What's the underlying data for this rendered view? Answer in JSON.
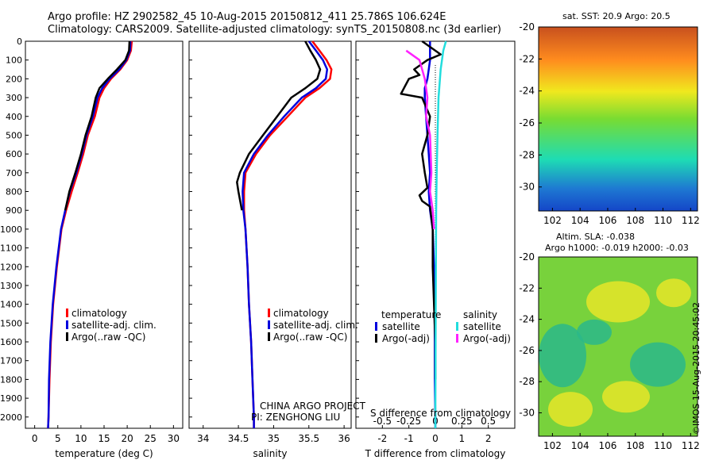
{
  "header": {
    "line1": "Argo profile: HZ 2902582_45 10-Aug-2015 20150812_411 25.786S 106.624E",
    "line2": "Climatology: CARS2009. Satellite-adjusted climatology: synTS_20150808.nc (3d earlier)"
  },
  "colors": {
    "climatology": "#ff0000",
    "satellite": "#0000dd",
    "argo": "#000000",
    "salinity_satellite": "#22dddd",
    "salinity_argo": "#ff22ff"
  },
  "legend": {
    "climatology": "climatology",
    "satellite_adj": "satellite-adj. clim.",
    "argo_raw": "Argo(..raw -QC)",
    "temperature_head": "temperature",
    "salinity_head": "salinity",
    "satellite": "satellite",
    "argo_adj": "Argo(-adj)"
  },
  "annotations": {
    "project": "CHINA ARGO PROJECT",
    "pi": "PI: ZENGHONG LIU",
    "s_diff": "S difference from climatology",
    "stamp": "©IMOS 15-Aug-2015 20:45:02"
  },
  "maps": {
    "sst_title": "sat. SST: 20.9 Argo: 20.5",
    "sla_title1": "Altim. SLA: -0.038",
    "sla_title2": "Argo h1000: -0.019 h2000: -0.03",
    "lat_ticks": [
      "-20",
      "-22",
      "-24",
      "-26",
      "-28",
      "-30"
    ],
    "lon_ticks": [
      "102",
      "104",
      "106",
      "108",
      "110",
      "112"
    ]
  },
  "chart_data": [
    {
      "type": "line",
      "xlabel": "temperature (deg C)",
      "ylabel": "",
      "xlim": [
        -2,
        32
      ],
      "ylim": [
        2060,
        0
      ],
      "x_ticks": [
        "0",
        "5",
        "10",
        "15",
        "20",
        "25",
        "30"
      ],
      "y_ticks": [
        "0",
        "100",
        "200",
        "300",
        "400",
        "500",
        "600",
        "700",
        "800",
        "900",
        "1000",
        "1100",
        "1200",
        "1300",
        "1400",
        "1500",
        "1600",
        "1700",
        "1800",
        "1900",
        "2000"
      ],
      "series": [
        {
          "name": "climatology",
          "color_key": "climatology",
          "points": [
            [
              21.0,
              0
            ],
            [
              20.8,
              50
            ],
            [
              20.0,
              100
            ],
            [
              18.5,
              150
            ],
            [
              16.5,
              200
            ],
            [
              15.0,
              250
            ],
            [
              14.0,
              300
            ],
            [
              13.0,
              400
            ],
            [
              11.5,
              500
            ],
            [
              10.5,
              600
            ],
            [
              9.3,
              700
            ],
            [
              8.0,
              800
            ],
            [
              6.8,
              900
            ],
            [
              5.8,
              1000
            ],
            [
              4.8,
              1200
            ],
            [
              4.0,
              1400
            ],
            [
              3.5,
              1600
            ],
            [
              3.2,
              1800
            ],
            [
              3.0,
              2000
            ],
            [
              2.9,
              2060
            ]
          ]
        },
        {
          "name": "satellite-adj. clim.",
          "color_key": "satellite",
          "points": [
            [
              20.7,
              0
            ],
            [
              20.6,
              50
            ],
            [
              19.8,
              100
            ],
            [
              18.3,
              150
            ],
            [
              16.2,
              200
            ],
            [
              14.6,
              250
            ],
            [
              13.6,
              300
            ],
            [
              12.6,
              400
            ],
            [
              11.2,
              500
            ],
            [
              10.2,
              600
            ],
            [
              9.0,
              700
            ],
            [
              7.6,
              800
            ],
            [
              6.6,
              900
            ],
            [
              5.7,
              1000
            ],
            [
              4.7,
              1200
            ],
            [
              3.9,
              1400
            ],
            [
              3.4,
              1600
            ],
            [
              3.1,
              1800
            ],
            [
              3.0,
              2000
            ],
            [
              2.9,
              2060
            ]
          ]
        },
        {
          "name": "Argo(..raw -QC)",
          "color_key": "argo",
          "points": [
            [
              20.5,
              0
            ],
            [
              20.4,
              50
            ],
            [
              19.6,
              100
            ],
            [
              17.8,
              150
            ],
            [
              15.8,
              200
            ],
            [
              14.0,
              250
            ],
            [
              13.2,
              300
            ],
            [
              12.3,
              400
            ],
            [
              11.0,
              500
            ],
            [
              10.0,
              600
            ],
            [
              8.8,
              700
            ],
            [
              7.5,
              800
            ],
            [
              6.6,
              900
            ]
          ]
        }
      ]
    },
    {
      "type": "line",
      "xlabel": "salinity",
      "ylabel": "",
      "xlim": [
        33.8,
        36.1
      ],
      "ylim": [
        2060,
        0
      ],
      "x_ticks": [
        "34",
        "34.5",
        "35",
        "35.5",
        "36"
      ],
      "series": [
        {
          "name": "climatology",
          "color_key": "climatology",
          "points": [
            [
              35.55,
              0
            ],
            [
              35.65,
              50
            ],
            [
              35.75,
              100
            ],
            [
              35.82,
              150
            ],
            [
              35.8,
              200
            ],
            [
              35.65,
              250
            ],
            [
              35.45,
              300
            ],
            [
              35.2,
              400
            ],
            [
              34.95,
              500
            ],
            [
              34.75,
              600
            ],
            [
              34.6,
              700
            ],
            [
              34.58,
              800
            ],
            [
              34.58,
              900
            ],
            [
              34.6,
              1000
            ],
            [
              34.63,
              1200
            ],
            [
              34.65,
              1400
            ],
            [
              34.68,
              1600
            ],
            [
              34.7,
              1800
            ],
            [
              34.72,
              2000
            ],
            [
              34.72,
              2060
            ]
          ]
        },
        {
          "name": "satellite-adj. clim.",
          "color_key": "satellite",
          "points": [
            [
              35.5,
              0
            ],
            [
              35.6,
              50
            ],
            [
              35.7,
              100
            ],
            [
              35.76,
              150
            ],
            [
              35.74,
              200
            ],
            [
              35.6,
              250
            ],
            [
              35.4,
              300
            ],
            [
              35.15,
              400
            ],
            [
              34.92,
              500
            ],
            [
              34.72,
              600
            ],
            [
              34.58,
              700
            ],
            [
              34.56,
              800
            ],
            [
              34.57,
              900
            ],
            [
              34.6,
              1000
            ],
            [
              34.63,
              1200
            ],
            [
              34.65,
              1400
            ],
            [
              34.68,
              1600
            ],
            [
              34.7,
              1800
            ],
            [
              34.72,
              2000
            ],
            [
              34.72,
              2060
            ]
          ]
        },
        {
          "name": "Argo(..raw -QC)",
          "color_key": "argo",
          "points": [
            [
              35.45,
              0
            ],
            [
              35.52,
              50
            ],
            [
              35.6,
              100
            ],
            [
              35.66,
              150
            ],
            [
              35.62,
              200
            ],
            [
              35.45,
              250
            ],
            [
              35.25,
              300
            ],
            [
              35.05,
              400
            ],
            [
              34.85,
              500
            ],
            [
              34.65,
              600
            ],
            [
              34.52,
              700
            ],
            [
              34.48,
              750
            ],
            [
              34.5,
              800
            ],
            [
              34.55,
              900
            ]
          ]
        }
      ]
    },
    {
      "type": "line",
      "xlabel": "T difference from climatology",
      "ylabel": "",
      "xlim": [
        -3,
        3
      ],
      "ylim": [
        2060,
        0
      ],
      "x_ticks": [
        "-2",
        "-1",
        "0",
        "1",
        "2"
      ],
      "top_ticks": [
        "-0.5",
        "-0.25",
        "0",
        "0.25",
        "0.5"
      ],
      "series": [
        {
          "name": "temperature satellite",
          "color_key": "satellite",
          "points": [
            [
              -0.2,
              0
            ],
            [
              -0.2,
              50
            ],
            [
              -0.2,
              100
            ],
            [
              -0.25,
              150
            ],
            [
              -0.3,
              200
            ],
            [
              -0.4,
              250
            ],
            [
              -0.4,
              300
            ],
            [
              -0.35,
              400
            ],
            [
              -0.3,
              500
            ],
            [
              -0.25,
              600
            ],
            [
              -0.2,
              700
            ],
            [
              -0.25,
              800
            ],
            [
              -0.2,
              900
            ],
            [
              -0.1,
              1000
            ],
            [
              -0.05,
              1200
            ],
            [
              -0.03,
              1400
            ],
            [
              -0.02,
              1600
            ],
            [
              -0.02,
              1800
            ],
            [
              0,
              2000
            ],
            [
              0,
              2060
            ]
          ]
        },
        {
          "name": "temperature Argo(-adj)",
          "color_key": "argo",
          "points": [
            [
              -0.5,
              0
            ],
            [
              0.2,
              70
            ],
            [
              -0.3,
              100
            ],
            [
              -0.8,
              150
            ],
            [
              -0.6,
              180
            ],
            [
              -1.0,
              200
            ],
            [
              -1.3,
              280
            ],
            [
              -0.5,
              300
            ],
            [
              -0.2,
              400
            ],
            [
              -0.3,
              500
            ],
            [
              -0.5,
              600
            ],
            [
              -0.4,
              700
            ],
            [
              -0.3,
              780
            ],
            [
              -0.6,
              820
            ],
            [
              -0.5,
              850
            ],
            [
              -0.2,
              880
            ],
            [
              -0.1,
              1000
            ],
            [
              -0.1,
              1200
            ],
            [
              -0.05,
              1400
            ],
            [
              0,
              1600
            ],
            [
              0,
              1700
            ],
            [
              0,
              1800
            ]
          ]
        },
        {
          "name": "salinity satellite",
          "color_key": "salinity_satellite",
          "points": [
            [
              0.4,
              0
            ],
            [
              0.3,
              50
            ],
            [
              0.2,
              150
            ],
            [
              0.12,
              300
            ],
            [
              0.08,
              500
            ],
            [
              0.05,
              700
            ],
            [
              0.03,
              900
            ],
            [
              0.02,
              1200
            ],
            [
              0.01,
              1600
            ],
            [
              0,
              2000
            ],
            [
              0,
              2060
            ]
          ]
        },
        {
          "name": "salinity Argo(-adj)",
          "color_key": "salinity_argo",
          "points": [
            [
              -1.1,
              50
            ],
            [
              -0.6,
              100
            ],
            [
              -0.4,
              200
            ],
            [
              -0.3,
              300
            ],
            [
              -0.35,
              400
            ],
            [
              -0.2,
              500
            ],
            [
              -0.15,
              700
            ],
            [
              -0.2,
              800
            ],
            [
              -0.1,
              900
            ],
            [
              -0.05,
              1000
            ]
          ]
        }
      ]
    }
  ]
}
